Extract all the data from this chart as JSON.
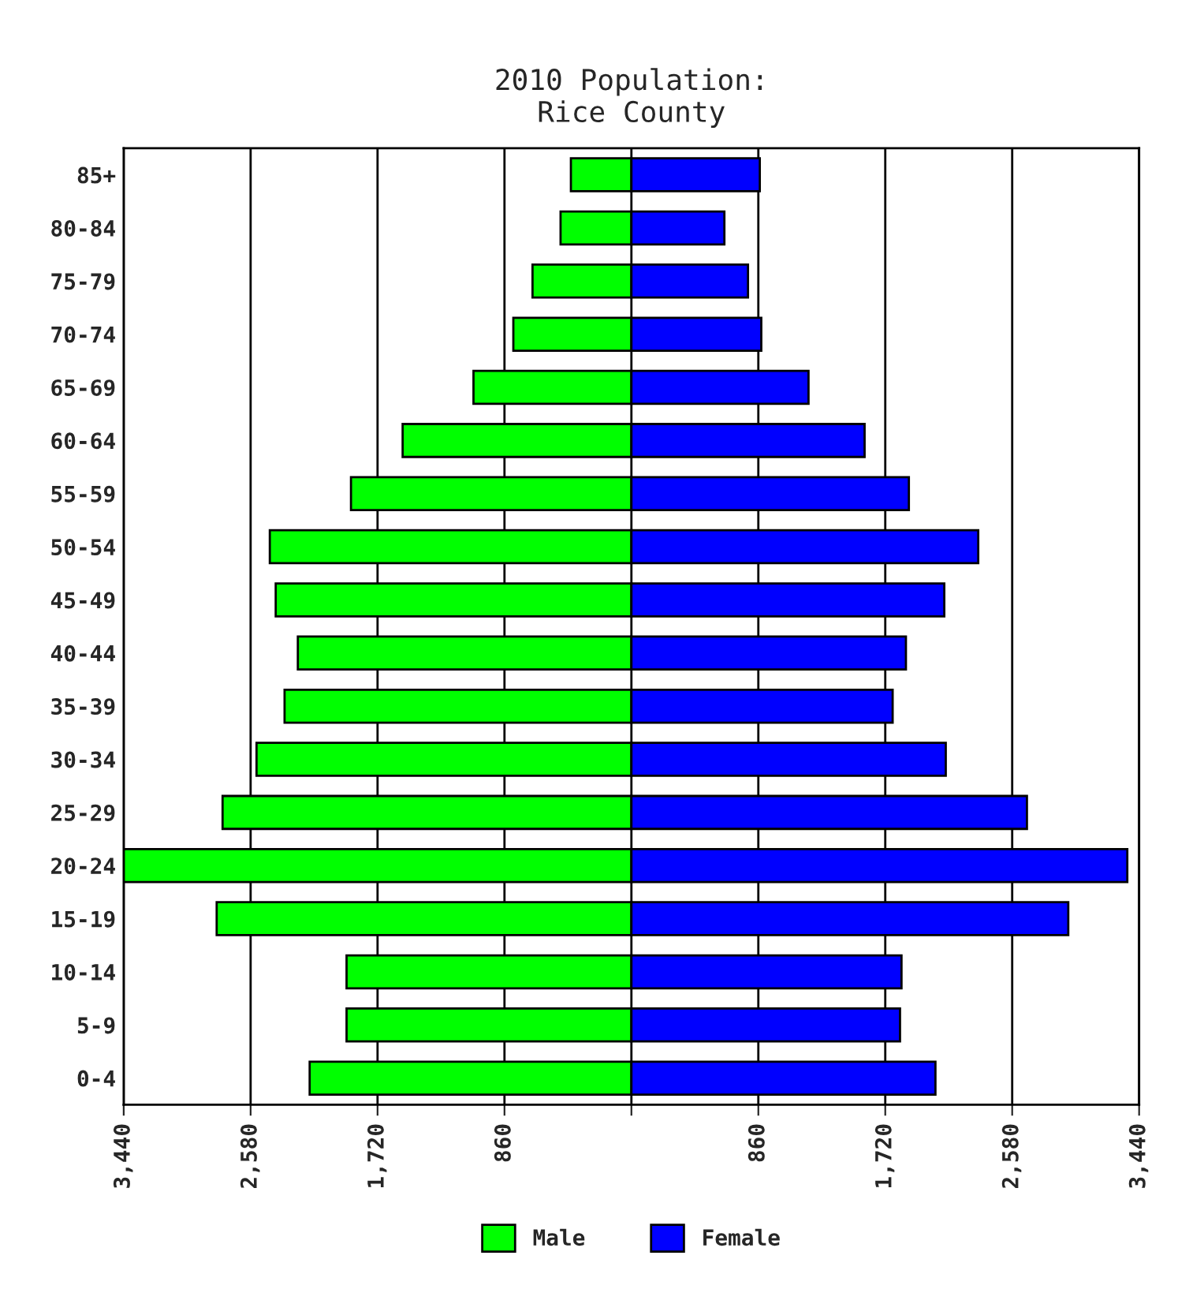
{
  "chart_data": {
    "type": "bar",
    "orientation": "horizontal",
    "stacked": true,
    "title": "2010 Population:\nRice County",
    "categories": [
      "85+",
      "80-84",
      "75-79",
      "70-74",
      "65-69",
      "60-64",
      "55-59",
      "50-54",
      "45-49",
      "40-44",
      "35-39",
      "30-34",
      "25-29",
      "20-24",
      "15-19",
      "10-14",
      "5-9",
      "0-4"
    ],
    "series": [
      {
        "name": "Male",
        "color": "#00ff00",
        "values": [
          -410,
          -480,
          -670,
          -800,
          -1070,
          -1550,
          -1900,
          -2450,
          -2410,
          -2260,
          -2350,
          -2540,
          -2770,
          -3440,
          -2810,
          -1930,
          -1930,
          -2180
        ]
      },
      {
        "name": "Female",
        "color": "#0000ff",
        "values": [
          870,
          630,
          790,
          880,
          1200,
          1580,
          1880,
          2350,
          2120,
          1860,
          1770,
          2130,
          2680,
          3360,
          2960,
          1830,
          1820,
          2060
        ]
      }
    ],
    "xlim": [
      -3440,
      3440
    ],
    "xticks": [
      {
        "value": -3440,
        "label": "3,440"
      },
      {
        "value": -2580,
        "label": "2,580"
      },
      {
        "value": -1720,
        "label": "1,720"
      },
      {
        "value": -860,
        "label": "860"
      },
      {
        "value": 0,
        "label": null
      },
      {
        "value": 860,
        "label": "860"
      },
      {
        "value": 1720,
        "label": "1,720"
      },
      {
        "value": 2580,
        "label": "2,580"
      },
      {
        "value": 3440,
        "label": "3,440"
      }
    ],
    "grid": "x",
    "legend": "bottom"
  }
}
